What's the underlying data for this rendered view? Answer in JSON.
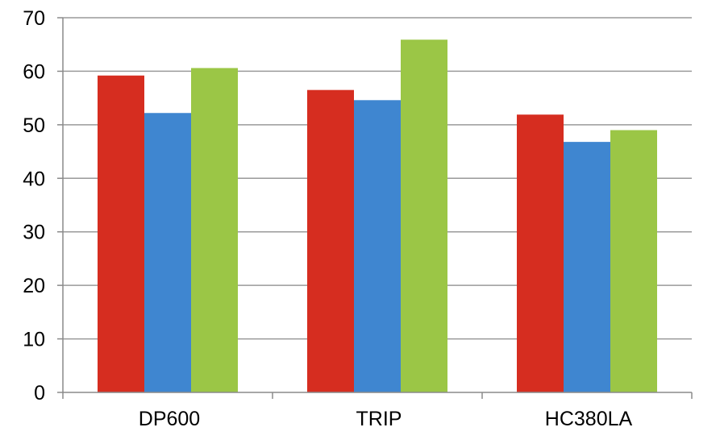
{
  "chart_data": {
    "type": "bar",
    "title": "",
    "xlabel": "",
    "ylabel": "",
    "categories": [
      "DP600",
      "TRIP",
      "HC380LA"
    ],
    "series": [
      {
        "color": "#d62d20",
        "values": [
          59.2,
          56.5,
          51.9
        ]
      },
      {
        "color": "#3f86d0",
        "values": [
          52.2,
          54.6,
          46.8
        ]
      },
      {
        "color": "#9bc646",
        "values": [
          60.6,
          65.9,
          49.0
        ]
      }
    ],
    "ylim": [
      0,
      70
    ],
    "yticks": [
      0,
      10,
      20,
      30,
      40,
      50,
      60,
      70
    ],
    "grid": true,
    "legend": "none"
  }
}
